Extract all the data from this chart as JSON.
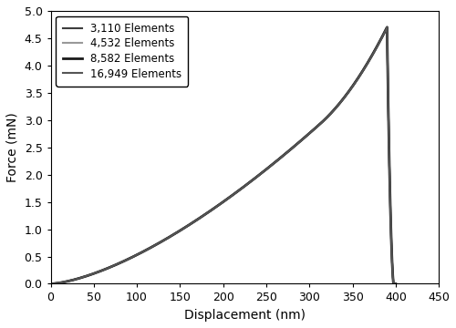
{
  "title": "",
  "xlabel": "Displacement (nm)",
  "ylabel": "Force (mN)",
  "xlim": [
    0,
    450
  ],
  "ylim": [
    0,
    5
  ],
  "xticks": [
    0,
    50,
    100,
    150,
    200,
    250,
    300,
    350,
    400,
    450
  ],
  "yticks": [
    0,
    0.5,
    1.0,
    1.5,
    2.0,
    2.5,
    3.0,
    3.5,
    4.0,
    4.5,
    5.0
  ],
  "series": [
    {
      "label": "3,110 Elements",
      "color": "#3d3d3d",
      "lw": 1.5,
      "ls": "-"
    },
    {
      "label": "4,532 Elements",
      "color": "#999999",
      "lw": 1.5,
      "ls": "-"
    },
    {
      "label": "8,582 Elements",
      "color": "#1a1a1a",
      "lw": 2.0,
      "ls": "-"
    },
    {
      "label": "16,949 Elements",
      "color": "#555555",
      "lw": 1.5,
      "ls": "-"
    }
  ],
  "peak_x": 390.0,
  "peak_f": 4.7,
  "unload_end_x": 400.0,
  "unload_curve_x": 397.0,
  "unload_curve_f": 0.08,
  "background_color": "#ffffff",
  "legend_loc": "upper left",
  "legend_fontsize": 8.5,
  "axis_fontsize": 10,
  "tick_fontsize": 9,
  "xlabel_fontsize": 10,
  "ylabel_fontsize": 10
}
